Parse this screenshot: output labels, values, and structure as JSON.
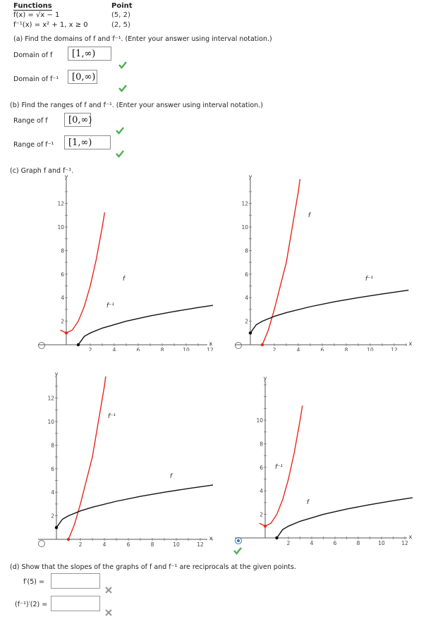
{
  "header": {
    "functions_label": "Functions",
    "point_label": "Point",
    "f_def": "f(x) = √x − 1",
    "f_point": "(5, 2)",
    "finv_def": "f⁻¹(x) = x² + 1,   x ≥ 0",
    "finv_point": "(2, 5)"
  },
  "part_a": {
    "question": "(a) Find the domains of f and f⁻¹. (Enter your answer using interval notation.)",
    "domain_f_label": "Domain of f",
    "domain_f_value": "[1,∞)",
    "domain_finv_label": "Domain of f⁻¹",
    "domain_finv_value": "[0,∞)"
  },
  "part_b": {
    "question": "(b) Find the ranges of f and f⁻¹. (Enter your answer using interval notation.)",
    "range_f_label": "Range of f",
    "range_f_value": "[0,∞)",
    "range_finv_label": "Range of f⁻¹",
    "range_finv_value": "[1,∞)"
  },
  "part_c": {
    "question": "(c) Graph f and f⁻¹.",
    "selected_option": 3,
    "graph_labels": [
      {
        "red": "f",
        "black": "f⁻¹"
      },
      {
        "red": "f",
        "black": "f⁻¹"
      },
      {
        "red": "f⁻¹",
        "black": "f"
      },
      {
        "red": "f⁻¹",
        "black": "f"
      }
    ]
  },
  "part_d": {
    "question": "(d) Show that the slopes of the graphs of f and f⁻¹ are reciprocals at the given points.",
    "fprime_label": "f′(5) =",
    "fprime_value": "",
    "finvprime_label": "(f⁻¹)′(2) =",
    "finvprime_value": ""
  },
  "colors": {
    "correct": "#4caf50",
    "incorrect": "#999999",
    "red_curve": "#e8261c",
    "black_curve": "#111111",
    "radio_selected": "#2a73c8"
  },
  "chart_data": [
    {
      "type": "line",
      "title": "",
      "xlabel": "x",
      "ylabel": "y",
      "xlim": [
        -0.5,
        13.2
      ],
      "ylim": [
        -0.3,
        13.3
      ],
      "x_ticks": [
        2,
        4,
        6,
        8,
        10,
        12
      ],
      "y_ticks": [
        2,
        4,
        6,
        8,
        10,
        12
      ],
      "series": [
        {
          "name": "f",
          "color": "red",
          "x": [
            -0.5,
            0,
            0.5,
            1,
            1.5,
            2,
            2.5,
            3,
            3.2
          ],
          "y": [
            1.25,
            1,
            1.25,
            2,
            3.25,
            5,
            7.25,
            10,
            11.24
          ]
        },
        {
          "name": "f⁻¹",
          "color": "black",
          "x": [
            1,
            1.5,
            2,
            3,
            5,
            7,
            9,
            11,
            12.7
          ],
          "y": [
            0,
            0.707,
            1,
            1.414,
            2,
            2.449,
            2.828,
            3.162,
            3.422
          ]
        }
      ]
    },
    {
      "type": "line",
      "title": "",
      "xlabel": "x",
      "ylabel": "y",
      "xlim": [
        -0.5,
        13.2
      ],
      "ylim": [
        -0.3,
        13.3
      ],
      "x_ticks": [
        2,
        4,
        6,
        8,
        10,
        12
      ],
      "y_ticks": [
        2,
        4,
        6,
        8,
        10,
        12
      ],
      "series": [
        {
          "name": "f",
          "color": "red",
          "x": [
            1,
            1.5,
            2,
            3,
            4,
            4.6
          ],
          "y": [
            0,
            1.25,
            3,
            7,
            13,
            17.56
          ]
        },
        {
          "name": "f⁻¹",
          "color": "black",
          "x": [
            0,
            0.5,
            1,
            2,
            3,
            5,
            7,
            9,
            11,
            13.2
          ],
          "y": [
            1,
            1.707,
            2,
            2.414,
            2.732,
            3.236,
            3.646,
            4,
            4.317,
            4.633
          ]
        }
      ]
    },
    {
      "type": "line",
      "title": "",
      "xlabel": "x",
      "ylabel": "y",
      "xlim": [
        -0.5,
        13.2
      ],
      "ylim": [
        -0.3,
        13.3
      ],
      "x_ticks": [
        2,
        4,
        6,
        8,
        10,
        12
      ],
      "y_ticks": [
        2,
        4,
        6,
        8,
        10,
        12
      ],
      "series": [
        {
          "name": "f⁻¹",
          "color": "red",
          "x": [
            1,
            1.5,
            2,
            3,
            4,
            4.6
          ],
          "y": [
            0,
            1.25,
            3,
            7,
            13,
            17.56
          ]
        },
        {
          "name": "f",
          "color": "black",
          "x": [
            0,
            0.5,
            1,
            2,
            3,
            5,
            7,
            9,
            11,
            13.2
          ],
          "y": [
            1,
            1.707,
            2,
            2.414,
            2.732,
            3.236,
            3.646,
            4,
            4.317,
            4.633
          ]
        }
      ]
    },
    {
      "type": "line",
      "title": "",
      "xlabel": "x",
      "ylabel": "y",
      "xlim": [
        -0.5,
        13.2
      ],
      "ylim": [
        -0.3,
        13.3
      ],
      "x_ticks": [
        2,
        4,
        6,
        8,
        10,
        12
      ],
      "y_ticks": [
        2,
        4,
        6,
        8,
        10
      ],
      "series": [
        {
          "name": "f⁻¹",
          "color": "red",
          "x": [
            -0.5,
            0,
            0.5,
            1,
            1.5,
            2,
            2.5,
            3,
            3.2
          ],
          "y": [
            1.25,
            1,
            1.25,
            2,
            3.25,
            5,
            7.25,
            10,
            11.24
          ]
        },
        {
          "name": "f",
          "color": "black",
          "x": [
            1,
            1.5,
            2,
            3,
            5,
            7,
            9,
            11,
            12.7
          ],
          "y": [
            0,
            0.707,
            1,
            1.414,
            2,
            2.449,
            2.828,
            3.162,
            3.422
          ]
        }
      ]
    }
  ]
}
